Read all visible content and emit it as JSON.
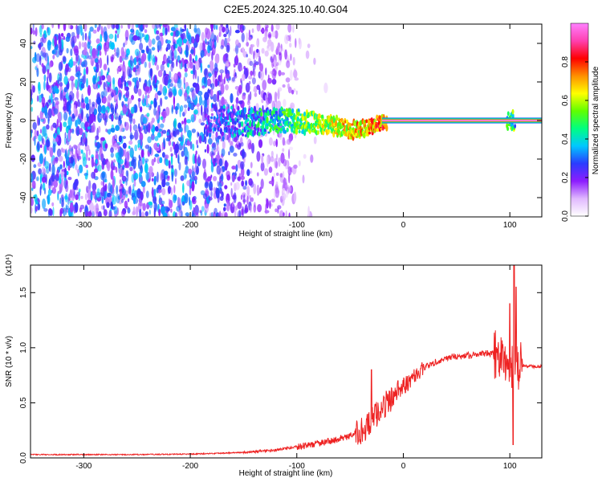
{
  "title": "C2E5.2024.325.10.40.G04",
  "chart_data": [
    {
      "type": "heatmap",
      "xlabel": "Height of straight line (km)",
      "ylabel": "Frequency (Hz)",
      "xlim": [
        -350,
        130
      ],
      "ylim": [
        -50,
        50
      ],
      "x_ticks": [
        -300,
        -200,
        -100,
        0,
        100
      ],
      "y_ticks": [
        -40,
        -20,
        0,
        20,
        40
      ],
      "colorbar": {
        "label": "Normalized spectral amplitude",
        "range": [
          0,
          1
        ],
        "ticks": [
          "0.0",
          "0.2",
          "0.4",
          "0.6",
          "0.8"
        ],
        "colors": [
          "#ffffff",
          "#e0b8ff",
          "#8c1cff",
          "#2a3cff",
          "#00c8ff",
          "#00ff80",
          "#60ff00",
          "#ffff00",
          "#ff9000",
          "#ff0000",
          "#ff40b0",
          "#ff80ff"
        ]
      },
      "features": {
        "noise_extent_x": [
          -350,
          -100
        ],
        "ridge": [
          [
            -180,
            0
          ],
          [
            -150,
            -1
          ],
          [
            -120,
            0
          ],
          [
            -90,
            -1
          ],
          [
            -70,
            -2
          ],
          [
            -50,
            -5
          ],
          [
            -35,
            -4
          ],
          [
            -20,
            -1
          ],
          [
            0,
            0
          ],
          [
            130,
            0
          ]
        ],
        "carrier_line_from_x": -20,
        "carrier_freq": 0
      }
    },
    {
      "type": "line",
      "xlabel": "Height of straight line (km)",
      "ylabel": "SNR (10 * v/v)",
      "scale_note": "(x10⁴)",
      "xlim": [
        -350,
        130
      ],
      "ylim": [
        0,
        1.75
      ],
      "x_ticks": [
        -300,
        -200,
        -100,
        0,
        100
      ],
      "y_ticks": [
        "0.0",
        "0.5",
        "1.0",
        "1.5"
      ],
      "series": [
        {
          "color": "#ee2222",
          "x": [
            -350,
            -300,
            -250,
            -200,
            -180,
            -150,
            -120,
            -100,
            -80,
            -60,
            -50,
            -40,
            -35,
            -30,
            -25,
            -20,
            -10,
            0,
            10,
            20,
            30,
            40,
            60,
            80,
            90,
            95,
            100,
            103,
            105,
            110,
            120,
            130
          ],
          "y": [
            0.03,
            0.03,
            0.03,
            0.035,
            0.04,
            0.05,
            0.07,
            0.1,
            0.13,
            0.17,
            0.2,
            0.24,
            0.28,
            0.33,
            0.4,
            0.46,
            0.55,
            0.65,
            0.74,
            0.82,
            0.87,
            0.91,
            0.93,
            0.95,
            0.94,
            0.92,
            0.88,
            0.8,
            0.86,
            0.84,
            0.83,
            0.83
          ]
        }
      ],
      "spikes": [
        [
          -30,
          0.8
        ],
        [
          -18,
          0.55
        ],
        [
          -5,
          0.7
        ],
        [
          100,
          1.4
        ],
        [
          103,
          0.12
        ],
        [
          104,
          1.75
        ],
        [
          106,
          1.55
        ]
      ]
    }
  ]
}
